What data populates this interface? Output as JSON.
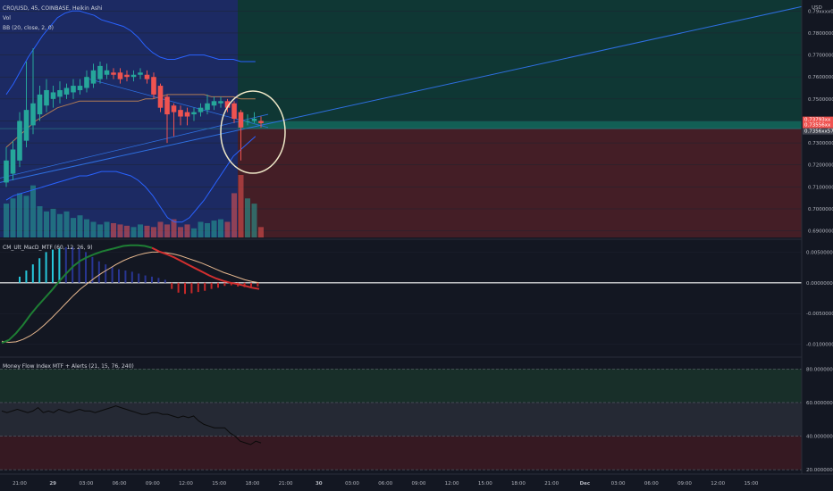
{
  "header": {
    "symbol_line": "CRO/USD, 45, COINBASE, Heikin Ashi",
    "vol_label": "Vol",
    "bb_label": "BB (20, close, 2, 0)",
    "currency": "USD"
  },
  "colors": {
    "background": "#131722",
    "bull": "#26a69a",
    "bear": "#ef5350",
    "blue_zone": "#1e2e6e",
    "target_zone": "#0f3b36",
    "stop_zone": "#4a1f27",
    "bb_line": "#2962ff",
    "basis_line": "#b07b55",
    "trend_line": "#2e6fe0",
    "circle": "#efe8c8",
    "macd_green": "#1e7e34",
    "macd_red": "#d32f2f",
    "signal": "#e7b88f",
    "mfi_line": "#0a0a0a"
  },
  "price_axis": {
    "ticks": [
      "0.79xxxx00",
      "0.78000000",
      "0.77000000",
      "0.76000000",
      "0.75000000",
      "0.74000000",
      "0.73000000",
      "0.72000000",
      "0.71000000",
      "0.70000000",
      "0.69000000"
    ],
    "current_tags": [
      "0.73793xx",
      "0.73556xx",
      "0.7356xx57"
    ]
  },
  "macd_panel": {
    "label": "CM_Ult_MacD_MTF (60, 12, 26, 9)",
    "ticks": [
      "0.00500000",
      "0.00000000",
      "-0.00500000",
      "-0.01000000"
    ]
  },
  "mfi_panel": {
    "label": "Money Flow Index MTF + Alerts (21, 15, 76, 240)",
    "ticks": [
      "80.00000000",
      "60.00000000",
      "40.00000000",
      "20.00000000"
    ]
  },
  "time_axis": {
    "labels": [
      "21:00",
      "29",
      "03:00",
      "06:00",
      "09:00",
      "12:00",
      "15:00",
      "18:00",
      "21:00",
      "30",
      "03:00",
      "06:00",
      "09:00",
      "12:00",
      "15:00",
      "18:00",
      "21:00",
      "Dec",
      "03:00",
      "06:00",
      "09:00",
      "12:00",
      "15:00"
    ]
  },
  "chart_data": [
    {
      "type": "candlestick",
      "title": "CRO/USD, 45, COINBASE, Heikin Ashi",
      "ylim": [
        0.687,
        0.795
      ],
      "candles": [
        {
          "o": 0.712,
          "c": 0.722,
          "h": 0.728,
          "l": 0.71
        },
        {
          "o": 0.716,
          "c": 0.727,
          "h": 0.731,
          "l": 0.713
        },
        {
          "o": 0.722,
          "c": 0.74,
          "h": 0.744,
          "l": 0.719
        },
        {
          "o": 0.731,
          "c": 0.745,
          "h": 0.767,
          "l": 0.728
        },
        {
          "o": 0.738,
          "c": 0.748,
          "h": 0.773,
          "l": 0.734
        },
        {
          "o": 0.743,
          "c": 0.752,
          "h": 0.756,
          "l": 0.74
        },
        {
          "o": 0.747,
          "c": 0.754,
          "h": 0.759,
          "l": 0.744
        },
        {
          "o": 0.75,
          "c": 0.753,
          "h": 0.756,
          "l": 0.746
        },
        {
          "o": 0.751,
          "c": 0.754,
          "h": 0.758,
          "l": 0.748
        },
        {
          "o": 0.752,
          "c": 0.755,
          "h": 0.757,
          "l": 0.75
        },
        {
          "o": 0.753,
          "c": 0.756,
          "h": 0.759,
          "l": 0.75
        },
        {
          "o": 0.754,
          "c": 0.756,
          "h": 0.759,
          "l": 0.752
        },
        {
          "o": 0.755,
          "c": 0.76,
          "h": 0.763,
          "l": 0.753
        },
        {
          "o": 0.757,
          "c": 0.763,
          "h": 0.766,
          "l": 0.755
        },
        {
          "o": 0.759,
          "c": 0.765,
          "h": 0.767,
          "l": 0.757
        },
        {
          "o": 0.761,
          "c": 0.763,
          "h": 0.766,
          "l": 0.759
        },
        {
          "o": 0.762,
          "c": 0.761,
          "h": 0.764,
          "l": 0.759
        },
        {
          "o": 0.762,
          "c": 0.759,
          "h": 0.764,
          "l": 0.757
        },
        {
          "o": 0.761,
          "c": 0.76,
          "h": 0.763,
          "l": 0.758
        },
        {
          "o": 0.76,
          "c": 0.761,
          "h": 0.763,
          "l": 0.758
        },
        {
          "o": 0.761,
          "c": 0.762,
          "h": 0.764,
          "l": 0.759
        },
        {
          "o": 0.761,
          "c": 0.759,
          "h": 0.763,
          "l": 0.757
        },
        {
          "o": 0.76,
          "c": 0.752,
          "h": 0.762,
          "l": 0.75
        },
        {
          "o": 0.756,
          "c": 0.746,
          "h": 0.757,
          "l": 0.744
        },
        {
          "o": 0.751,
          "c": 0.743,
          "h": 0.752,
          "l": 0.73
        },
        {
          "o": 0.747,
          "c": 0.744,
          "h": 0.748,
          "l": 0.733
        },
        {
          "o": 0.745,
          "c": 0.742,
          "h": 0.747,
          "l": 0.738
        },
        {
          "o": 0.744,
          "c": 0.742,
          "h": 0.746,
          "l": 0.738
        },
        {
          "o": 0.743,
          "c": 0.744,
          "h": 0.746,
          "l": 0.74
        },
        {
          "o": 0.744,
          "c": 0.746,
          "h": 0.748,
          "l": 0.742
        },
        {
          "o": 0.745,
          "c": 0.748,
          "h": 0.752,
          "l": 0.743
        },
        {
          "o": 0.747,
          "c": 0.749,
          "h": 0.751,
          "l": 0.745
        },
        {
          "o": 0.748,
          "c": 0.749,
          "h": 0.751,
          "l": 0.746
        },
        {
          "o": 0.749,
          "c": 0.746,
          "h": 0.75,
          "l": 0.744
        },
        {
          "o": 0.748,
          "c": 0.741,
          "h": 0.749,
          "l": 0.739
        },
        {
          "o": 0.744,
          "c": 0.737,
          "h": 0.745,
          "l": 0.722
        },
        {
          "o": 0.74,
          "c": 0.74,
          "h": 0.743,
          "l": 0.738
        },
        {
          "o": 0.74,
          "c": 0.741,
          "h": 0.744,
          "l": 0.739
        },
        {
          "o": 0.74,
          "c": 0.739,
          "h": 0.742,
          "l": 0.737
        }
      ],
      "volumes": [
        0.26,
        0.3,
        0.34,
        0.32,
        0.4,
        0.24,
        0.2,
        0.22,
        0.18,
        0.2,
        0.15,
        0.17,
        0.14,
        0.12,
        0.1,
        0.12,
        0.11,
        0.1,
        0.09,
        0.08,
        0.1,
        0.09,
        0.08,
        0.12,
        0.1,
        0.14,
        0.08,
        0.1,
        0.07,
        0.12,
        0.11,
        0.13,
        0.14,
        0.12,
        0.34,
        0.48,
        0.3,
        0.26,
        0.08
      ],
      "current_price": 0.7379,
      "target_level": 0.7365,
      "bb_upper": [
        0.752,
        0.757,
        0.763,
        0.769,
        0.774,
        0.779,
        0.783,
        0.787,
        0.789,
        0.79,
        0.79,
        0.789,
        0.788,
        0.786,
        0.785,
        0.784,
        0.783,
        0.781,
        0.778,
        0.774,
        0.771,
        0.769,
        0.768,
        0.768,
        0.769,
        0.77,
        0.77,
        0.77,
        0.769,
        0.768,
        0.768,
        0.768,
        0.767,
        0.767,
        0.767
      ],
      "bb_basis": [
        0.728,
        0.731,
        0.734,
        0.737,
        0.74,
        0.742,
        0.744,
        0.746,
        0.747,
        0.748,
        0.749,
        0.749,
        0.749,
        0.749,
        0.749,
        0.749,
        0.749,
        0.749,
        0.749,
        0.75,
        0.75,
        0.751,
        0.752,
        0.752,
        0.752,
        0.752,
        0.752,
        0.752,
        0.751,
        0.751,
        0.751,
        0.751,
        0.75,
        0.75,
        0.75
      ],
      "bb_lower": [
        0.704,
        0.706,
        0.707,
        0.708,
        0.709,
        0.71,
        0.711,
        0.712,
        0.713,
        0.714,
        0.715,
        0.715,
        0.716,
        0.717,
        0.717,
        0.717,
        0.716,
        0.715,
        0.713,
        0.71,
        0.706,
        0.701,
        0.696,
        0.694,
        0.694,
        0.696,
        0.7,
        0.704,
        0.709,
        0.714,
        0.719,
        0.724,
        0.727,
        0.73,
        0.733
      ]
    },
    {
      "type": "bar+line",
      "title": "CM_Ult_MacD_MTF (60, 12, 26, 9)",
      "ylim": [
        -0.0118,
        0.0068
      ],
      "histogram": [
        0.001,
        0.002,
        0.003,
        0.004,
        0.005,
        0.0054,
        0.0056,
        0.0058,
        0.0058,
        0.0056,
        0.005,
        0.0042,
        0.0035,
        0.003,
        0.0026,
        0.0022,
        0.002,
        0.0018,
        0.0015,
        0.0012,
        0.001,
        0.0008,
        0.0005,
        -0.001,
        -0.0016,
        -0.0018,
        -0.0017,
        -0.0015,
        -0.0013,
        -0.001,
        -0.0008,
        -0.0005,
        -0.0004,
        -0.0006,
        -0.0007,
        -0.0006,
        -0.0006
      ],
      "macd": [
        -0.0098,
        -0.0093,
        -0.0082,
        -0.0068,
        -0.0052,
        -0.0038,
        -0.0025,
        -0.0012,
        0.0002,
        0.0015,
        0.0027,
        0.0036,
        0.0042,
        0.0047,
        0.0051,
        0.0054,
        0.0057,
        0.006,
        0.0061,
        0.0061,
        0.006,
        0.0057,
        0.0051,
        0.0047,
        0.0042,
        0.0036,
        0.003,
        0.0024,
        0.0018,
        0.0012,
        0.0007,
        0.0003,
        0.0,
        -0.0002,
        -0.0005,
        -0.0008,
        -0.001
      ],
      "signal": [
        -0.0095,
        -0.0097,
        -0.0096,
        -0.0092,
        -0.0086,
        -0.0078,
        -0.0068,
        -0.0057,
        -0.0045,
        -0.0033,
        -0.0021,
        -0.001,
        -0.0001,
        0.0008,
        0.0016,
        0.0023,
        0.003,
        0.0036,
        0.0041,
        0.0045,
        0.0048,
        0.005,
        0.005,
        0.0049,
        0.0047,
        0.0044,
        0.004,
        0.0036,
        0.0032,
        0.0027,
        0.0022,
        0.0017,
        0.0013,
        0.0009,
        0.0005,
        0.0002,
        0.0
      ]
    },
    {
      "type": "line",
      "title": "Money Flow Index MTF + Alerts (21, 15, 76, 240)",
      "ylim": [
        18,
        86
      ],
      "bands": [
        80,
        60,
        40,
        20
      ],
      "values": [
        55,
        54,
        55,
        56,
        55,
        54,
        55,
        57,
        54,
        55,
        54,
        56,
        55,
        54,
        55,
        56,
        55,
        55,
        54,
        55,
        56,
        57,
        58,
        57,
        56,
        55,
        54,
        53,
        53,
        54,
        54,
        53,
        53,
        52,
        51,
        52,
        51,
        52,
        49,
        47,
        46,
        45,
        45,
        45,
        42,
        40,
        37,
        36,
        35,
        37,
        36
      ]
    }
  ]
}
